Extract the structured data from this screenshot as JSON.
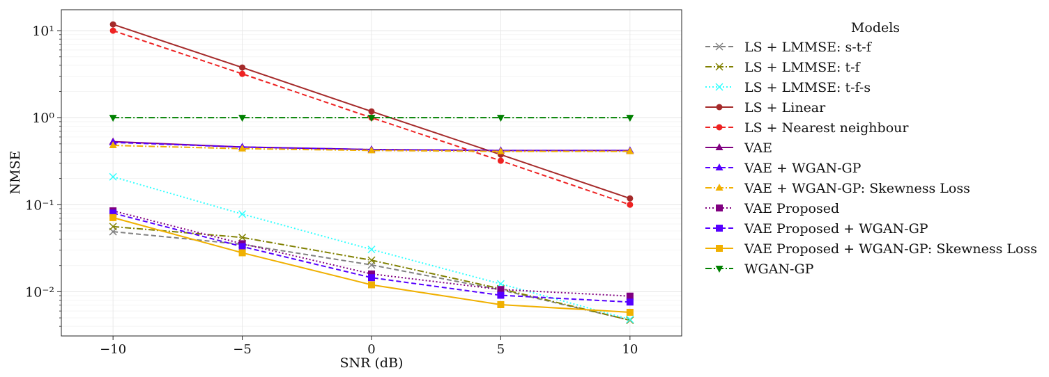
{
  "chart_data": {
    "type": "line",
    "xlabel": "SNR (dB)",
    "ylabel": "NMSE",
    "yscale": "log",
    "xlim": [
      -12,
      12
    ],
    "ylim": [
      0.0031,
      17.4
    ],
    "x": [
      -10,
      -5,
      0,
      5,
      10
    ],
    "xticks": [
      -10,
      -5,
      0,
      5,
      10
    ],
    "xtick_labels": [
      "−10",
      "−5",
      "0",
      "5",
      "10"
    ],
    "yticks": [
      0.01,
      0.1,
      1,
      10
    ],
    "ytick_labels": [
      "10⁻²",
      "10⁻¹",
      "10⁰",
      "10¹"
    ],
    "grid": true,
    "legend": {
      "title": "Models",
      "placement": "outside-right"
    },
    "series": [
      {
        "name": "LS + LMMSE: s-t-f",
        "values": [
          0.049,
          0.035,
          0.0203,
          0.0105,
          0.0047
        ],
        "color": "#808080",
        "dash": "dashed",
        "marker": "x"
      },
      {
        "name": "LS + LMMSE: t-f",
        "values": [
          0.056,
          0.042,
          0.023,
          0.0108,
          0.0047
        ],
        "color": "#808000",
        "dash": "dashdot",
        "marker": "x"
      },
      {
        "name": "LS + LMMSE: t-f-s",
        "values": [
          0.209,
          0.078,
          0.0306,
          0.0123,
          0.0048
        ],
        "color": "#33ffff",
        "dash": "dotted",
        "marker": "x"
      },
      {
        "name": "LS + Linear",
        "values": [
          11.8,
          3.77,
          1.18,
          0.376,
          0.118
        ],
        "color": "#a52a2a",
        "dash": "solid",
        "marker": "circle"
      },
      {
        "name": "LS + Nearest neighbour",
        "values": [
          10.0,
          3.19,
          1.0,
          0.32,
          0.1
        ],
        "color": "#ee2222",
        "dash": "dashed",
        "marker": "circle"
      },
      {
        "name": "VAE",
        "values": [
          0.53,
          0.46,
          0.43,
          0.42,
          0.42
        ],
        "color": "#800080",
        "dash": "solid",
        "marker": "triangle-up"
      },
      {
        "name": "VAE + WGAN-GP",
        "values": [
          0.52,
          0.46,
          0.43,
          0.42,
          0.42
        ],
        "color": "#5500ff",
        "dash": "dashed",
        "marker": "triangle-up"
      },
      {
        "name": "VAE + WGAN-GP: Skewness Loss",
        "values": [
          0.48,
          0.44,
          0.42,
          0.41,
          0.41
        ],
        "color": "#f0b000",
        "dash": "dashdot",
        "marker": "triangle-up"
      },
      {
        "name": "VAE Proposed",
        "values": [
          0.085,
          0.0356,
          0.016,
          0.0106,
          0.0089
        ],
        "color": "#800080",
        "dash": "dotted",
        "marker": "square"
      },
      {
        "name": "VAE Proposed + WGAN-GP",
        "values": [
          0.08,
          0.033,
          0.0145,
          0.0091,
          0.0076
        ],
        "color": "#5500ff",
        "dash": "dashed",
        "marker": "square"
      },
      {
        "name": "VAE Proposed + WGAN-GP: Skewness Loss",
        "values": [
          0.071,
          0.028,
          0.012,
          0.0071,
          0.0058
        ],
        "color": "#f0b000",
        "dash": "solid",
        "marker": "square"
      },
      {
        "name": "WGAN-GP",
        "values": [
          1.0,
          1.0,
          1.0,
          1.0,
          1.0
        ],
        "color": "#008000",
        "dash": "dashdot",
        "marker": "triangle-down"
      }
    ]
  }
}
